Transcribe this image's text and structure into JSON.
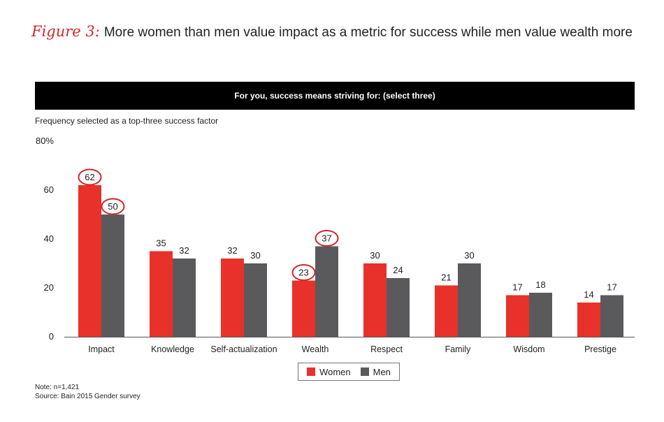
{
  "header": {
    "figure_label": "Figure 3:",
    "title": "More women than men value impact as a metric for success while men value wealth more"
  },
  "banner": {
    "text": "For you, success means striving for: (select three)"
  },
  "chart_data": {
    "type": "bar",
    "title": "For you, success means striving for: (select three)",
    "ylabel": "Frequency selected as a top-three success factor",
    "xlabel": "",
    "ylim": [
      0,
      80
    ],
    "yticks": [
      0,
      20,
      40,
      60,
      80
    ],
    "ytick_labels": [
      "0",
      "20",
      "40",
      "60",
      "80%"
    ],
    "categories": [
      "Impact",
      "Knowledge",
      "Self-actualization",
      "Wealth",
      "Respect",
      "Family",
      "Wisdom",
      "Prestige"
    ],
    "series": [
      {
        "name": "Women",
        "color": "#e8312a",
        "values": [
          62,
          35,
          32,
          23,
          30,
          21,
          17,
          14
        ]
      },
      {
        "name": "Men",
        "color": "#5a5a5c",
        "values": [
          50,
          32,
          30,
          37,
          24,
          30,
          18,
          17
        ]
      }
    ],
    "highlighted": [
      {
        "series": "Women",
        "category": "Impact"
      },
      {
        "series": "Men",
        "category": "Impact"
      },
      {
        "series": "Women",
        "category": "Wealth"
      },
      {
        "series": "Men",
        "category": "Wealth"
      }
    ],
    "highlight_color": "#d3262b",
    "grid": false,
    "legend": "bottom-center"
  },
  "legend": {
    "women_label": "Women",
    "men_label": "Men"
  },
  "footnote": {
    "note": "Note: n=1,421",
    "source": "Source: Bain 2015 Gender survey"
  }
}
